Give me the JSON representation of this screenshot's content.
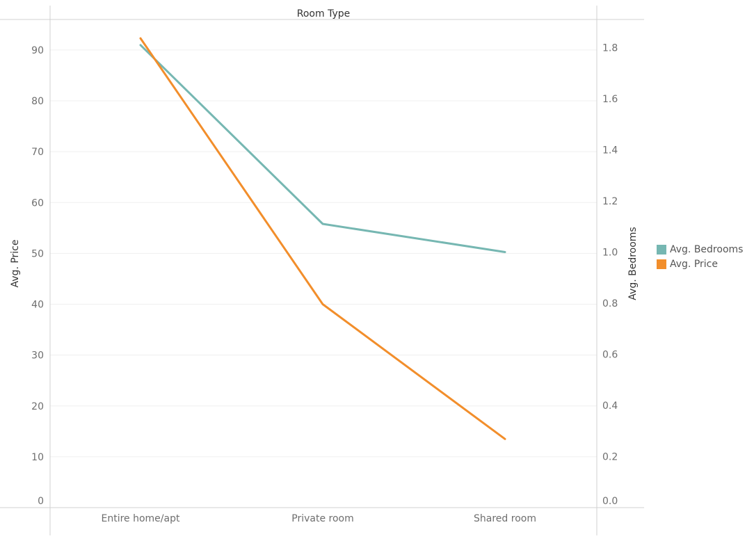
{
  "chart_data": {
    "type": "line",
    "title": "Room Type",
    "categories": [
      "Entire home/apt",
      "Private room",
      "Shared room"
    ],
    "series": [
      {
        "name": "Avg. Bedrooms",
        "axis": "right",
        "color": "#76b7b2",
        "values": [
          1.81,
          1.11,
          1.0
        ]
      },
      {
        "name": "Avg. Price",
        "axis": "left",
        "color": "#f28e2b",
        "values": [
          92.3,
          40.0,
          13.5
        ]
      }
    ],
    "y_left": {
      "label": "Avg. Price",
      "ylim": [
        0,
        96
      ],
      "ticks": [
        0,
        10,
        20,
        30,
        40,
        50,
        60,
        70,
        80,
        90
      ],
      "tick_labels": [
        "0",
        "10",
        "20",
        "30",
        "40",
        "50",
        "60",
        "70",
        "80",
        "90"
      ]
    },
    "y_right": {
      "label": "Avg. Bedrooms",
      "ylim": [
        0,
        1.91
      ],
      "ticks": [
        0,
        0.2,
        0.4,
        0.6,
        0.8,
        1.0,
        1.2,
        1.4,
        1.6,
        1.8
      ],
      "tick_labels": [
        "0.0",
        "0.2",
        "0.4",
        "0.6",
        "0.8",
        "1.0",
        "1.2",
        "1.4",
        "1.6",
        "1.8"
      ]
    },
    "grid": true,
    "legend": {
      "placement": "right",
      "items": [
        {
          "label": "Avg. Bedrooms",
          "color": "#76b7b2"
        },
        {
          "label": "Avg. Price",
          "color": "#f28e2b"
        }
      ]
    }
  }
}
